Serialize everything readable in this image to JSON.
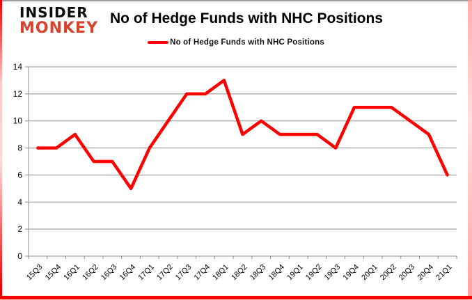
{
  "brand": {
    "line1": "INSIDER",
    "line2": "MONKEY",
    "monkey_color": "#d8432c",
    "insider_color": "#0d0d0d"
  },
  "title": "No of Hedge Funds with NHC Positions",
  "legend": {
    "label": "No of Hedge Funds with NHC Positions",
    "line_color": "#ff0000"
  },
  "chart_data": {
    "type": "line",
    "title": "No of Hedge Funds with NHC Positions",
    "categories": [
      "15Q3",
      "15Q4",
      "16Q1",
      "16Q2",
      "16Q3",
      "16Q4",
      "17Q1",
      "17Q2",
      "17Q3",
      "17Q4",
      "18Q1",
      "18Q2",
      "18Q3",
      "18Q4",
      "19Q1",
      "19Q2",
      "19Q3",
      "19Q4",
      "20Q1",
      "20Q2",
      "20Q3",
      "20Q4",
      "21Q1"
    ],
    "series": [
      {
        "name": "No of Hedge Funds with NHC Positions",
        "color": "#ff0000",
        "values": [
          8,
          8,
          9,
          7,
          7,
          5,
          8,
          10,
          12,
          12,
          13,
          9,
          10,
          9,
          9,
          9,
          8,
          11,
          11,
          11,
          10,
          9,
          6
        ]
      }
    ],
    "xlabel": "",
    "ylabel": "",
    "ylim": [
      0,
      14
    ],
    "ytick_step": 2,
    "grid": true,
    "legend_position": "top",
    "gridline_color": "#8e8e8e",
    "axis_text_color": "#000000"
  }
}
